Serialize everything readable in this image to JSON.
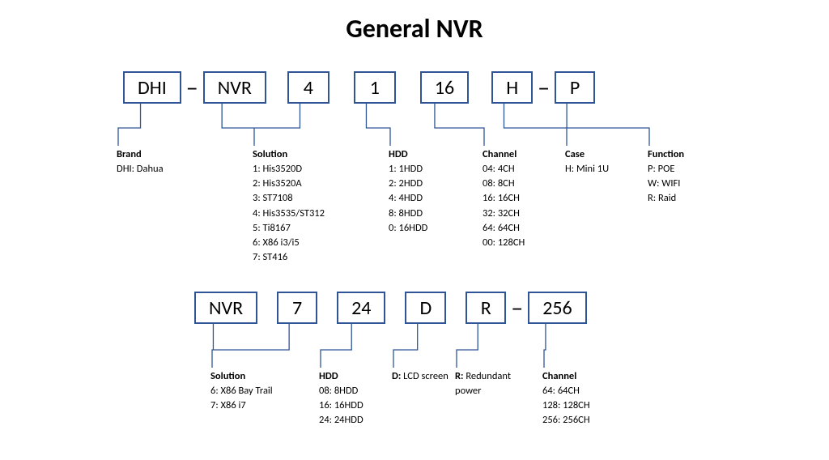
{
  "title": "General NVR",
  "colors": {
    "box_border": "#2f5597",
    "connector": "#2f5597",
    "text": "#000000",
    "background": "#ffffff"
  },
  "typography": {
    "title_fontsize": 32,
    "title_fontweight": 700,
    "box_fontsize": 24,
    "legend_fontsize": 12.5,
    "legend_head_fontweight": 700
  },
  "row1": {
    "boxes": [
      "DHI",
      "NVR",
      "4",
      "1",
      "16",
      "H",
      "P"
    ],
    "dashes_after": [
      0,
      5
    ]
  },
  "row2": {
    "boxes": [
      "NVR",
      "7",
      "24",
      "D",
      "R",
      "256"
    ],
    "dashes_after": [
      4
    ]
  },
  "legends_row1": {
    "brand": {
      "head": "Brand",
      "lines": [
        "DHI: Dahua"
      ]
    },
    "solution": {
      "head": "Solution",
      "lines": [
        "1: His3520D",
        "2: His3520A",
        "3: ST7108",
        "4: His3535/ST312",
        "5: Ti8167",
        "6: X86 i3/i5",
        "7: ST416"
      ]
    },
    "hdd": {
      "head": "HDD",
      "lines": [
        "1: 1HDD",
        "2: 2HDD",
        "4: 4HDD",
        "8: 8HDD",
        "0: 16HDD"
      ]
    },
    "channel": {
      "head": "Channel",
      "lines": [
        "04: 4CH",
        "08: 8CH",
        "16: 16CH",
        "32: 32CH",
        "64: 64CH",
        "00: 128CH"
      ]
    },
    "case": {
      "head": "Case",
      "lines": [
        "H: Mini 1U"
      ]
    },
    "function": {
      "head": "Function",
      "lines": [
        "P: POE",
        "W: WIFI",
        "R: Raid"
      ]
    }
  },
  "legends_row2": {
    "solution": {
      "head": "Solution",
      "lines": [
        "6: X86 Bay Trail",
        "7: X86 i7"
      ]
    },
    "hdd": {
      "head": "HDD",
      "lines": [
        "08: 8HDD",
        "16: 16HDD",
        "24: 24HDD"
      ]
    },
    "d": {
      "bold": "D:",
      "text": " LCD screen"
    },
    "r": {
      "bold": "R:",
      "text": " Redundant power"
    },
    "channel": {
      "head": "Channel",
      "lines": [
        "64: 64CH",
        "128: 128CH",
        "256: 256CH"
      ]
    }
  }
}
